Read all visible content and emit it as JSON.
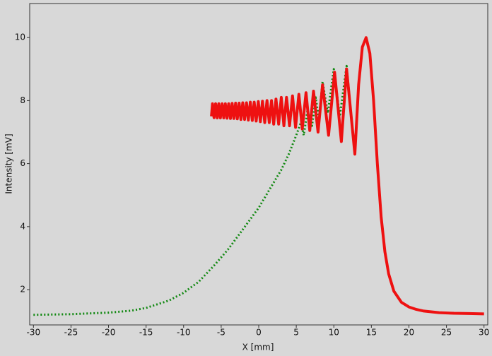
{
  "chart_data": {
    "type": "line",
    "x_label": "X [mm]",
    "y_label": "Intensity [mV]",
    "xlim": [
      -30.5,
      30.5
    ],
    "ylim": [
      0.88,
      11.08
    ],
    "xticks": [
      -30,
      -25,
      -20,
      -15,
      -10,
      -5,
      0,
      5,
      10,
      15,
      20,
      25,
      30
    ],
    "yticks": [
      2,
      4,
      6,
      8,
      10
    ],
    "grid": false,
    "series": [
      {
        "color": "#118811",
        "style": "dotted",
        "x": [
          -30,
          -25,
          -20,
          -17,
          -15,
          -12,
          -10,
          -8,
          -6,
          -4,
          -2,
          0,
          1,
          2,
          3,
          4,
          5,
          5.6,
          6.0,
          6.5,
          7.1,
          7.6,
          8.0,
          8.5,
          9.2,
          10.0,
          10.8,
          11.7,
          12.2
        ],
        "values": [
          1.2,
          1.22,
          1.27,
          1.33,
          1.42,
          1.65,
          1.9,
          2.25,
          2.75,
          3.3,
          3.95,
          4.6,
          5.0,
          5.4,
          5.8,
          6.3,
          6.9,
          7.3,
          6.9,
          7.7,
          7.2,
          8.1,
          7.4,
          8.6,
          7.6,
          9.0,
          7.5,
          9.1,
          7.8
        ]
      },
      {
        "color": "#ee1111",
        "style": "solid",
        "x": [
          -6.3,
          -6.16,
          -5.95,
          -5.74,
          -5.53,
          -5.32,
          -5.1,
          -4.88,
          -4.66,
          -4.44,
          -4.22,
          -4.0,
          -3.77,
          -3.54,
          -3.31,
          -3.08,
          -2.85,
          -2.61,
          -2.37,
          -2.13,
          -1.88,
          -1.63,
          -1.38,
          -1.12,
          -0.86,
          -0.6,
          -0.34,
          -0.06,
          0.22,
          0.5,
          0.8,
          1.1,
          1.4,
          1.7,
          2.0,
          2.3,
          2.65,
          3.0,
          3.35,
          3.7,
          4.1,
          4.5,
          4.9,
          5.35,
          5.8,
          6.3,
          6.8,
          7.3,
          7.9,
          8.5,
          9.3,
          10.1,
          11.0,
          11.7,
          12.8,
          13.3,
          13.8,
          14.3,
          14.8,
          15.3,
          15.8,
          16.3,
          16.8,
          17.3,
          18,
          19,
          20,
          21,
          22,
          24,
          26,
          28,
          30
        ],
        "values": [
          7.5,
          7.9,
          7.46,
          7.9,
          7.45,
          7.9,
          7.45,
          7.9,
          7.45,
          7.9,
          7.44,
          7.9,
          7.43,
          7.91,
          7.43,
          7.92,
          7.42,
          7.92,
          7.4,
          7.93,
          7.4,
          7.93,
          7.38,
          7.95,
          7.37,
          7.95,
          7.35,
          7.97,
          7.33,
          7.98,
          7.3,
          8.0,
          7.3,
          8.0,
          7.25,
          8.05,
          7.25,
          8.1,
          7.2,
          8.1,
          7.2,
          8.15,
          7.15,
          8.2,
          7.1,
          8.25,
          7.05,
          8.3,
          7.0,
          8.5,
          6.9,
          8.9,
          6.7,
          9.0,
          6.3,
          8.5,
          9.7,
          10.0,
          9.5,
          8.0,
          6.0,
          4.3,
          3.2,
          2.5,
          1.95,
          1.6,
          1.45,
          1.37,
          1.32,
          1.27,
          1.25,
          1.24,
          1.23
        ]
      }
    ]
  }
}
